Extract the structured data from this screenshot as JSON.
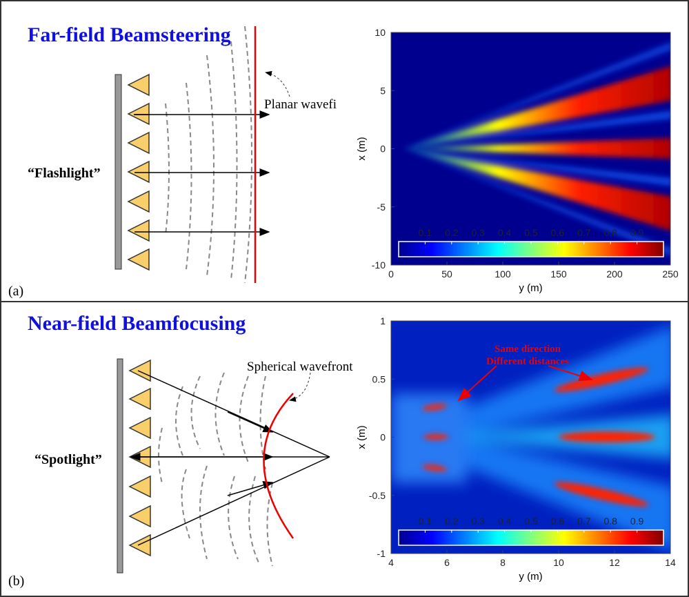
{
  "panels": [
    {
      "label": "(a)",
      "title": "Far-field Beamsteering",
      "mode_label": "“Flashlight”",
      "wavefront_label": "Planar wavefi",
      "heatmap": {
        "xlabel": "y (m)",
        "ylabel": "x (m)",
        "xlim": [
          0,
          250
        ],
        "ylim": [
          -10,
          10
        ],
        "xticks": [
          0,
          50,
          100,
          150,
          200,
          250
        ],
        "yticks": [
          -10,
          -5,
          0,
          5,
          10
        ],
        "colorbar": {
          "lim": [
            0,
            1
          ],
          "ticks": [
            0.1,
            0.2,
            0.3,
            0.4,
            0.5,
            0.6,
            0.7,
            0.8,
            0.9
          ]
        }
      }
    },
    {
      "label": "(b)",
      "title": "Near-field Beamfocusing",
      "mode_label": "“Spotlight”",
      "wavefront_label": "Spherical wavefront",
      "annotation": [
        "Same direction",
        "Different distances"
      ],
      "heatmap": {
        "xlabel": "y (m)",
        "ylabel": "x (m)",
        "xlim": [
          4,
          14
        ],
        "ylim": [
          -1,
          1
        ],
        "xticks": [
          4,
          6,
          8,
          10,
          12,
          14
        ],
        "yticks": [
          -1,
          -0.5,
          0,
          0.5,
          1
        ],
        "colorbar": {
          "lim": [
            0,
            1
          ],
          "ticks": [
            0.1,
            0.2,
            0.3,
            0.4,
            0.5,
            0.6,
            0.7,
            0.8,
            0.9
          ]
        }
      }
    }
  ]
}
